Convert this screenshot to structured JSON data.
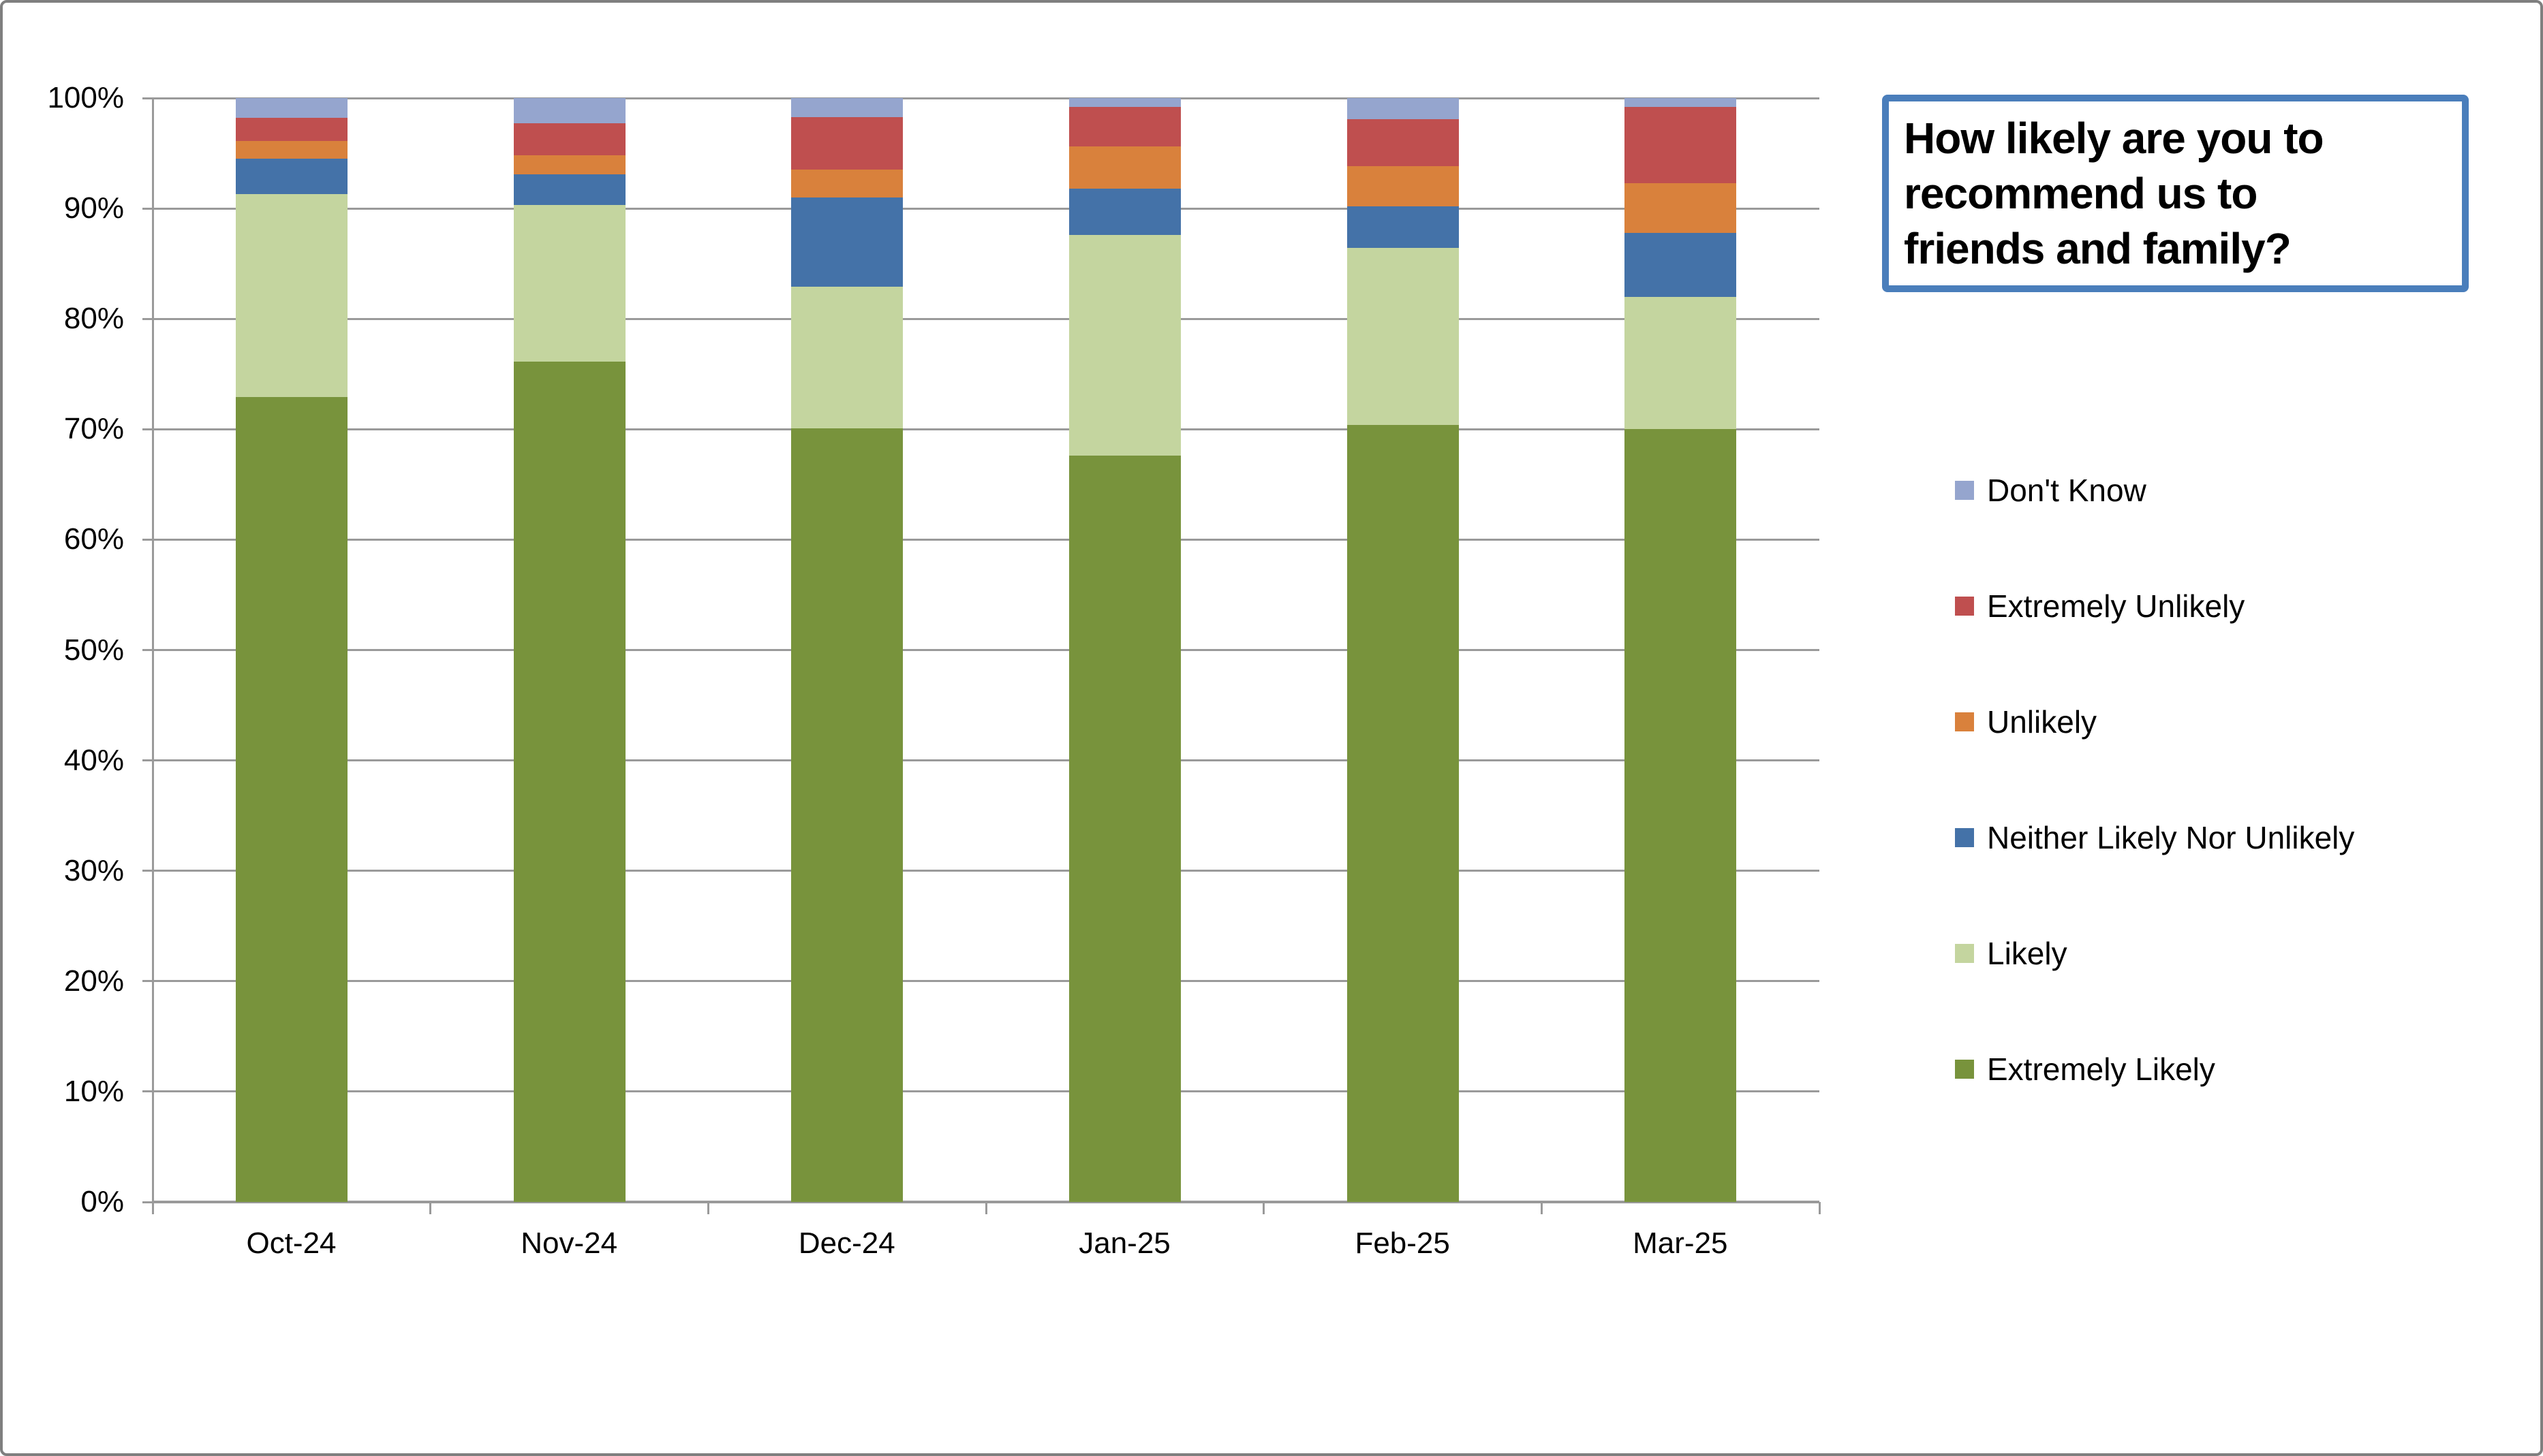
{
  "title": {
    "text": "How likely are you to\nrecommend us to\nfriends and family?",
    "border_color": "#4A7EBB"
  },
  "chart_data": {
    "type": "bar",
    "stacked": true,
    "percent_stacked": true,
    "title": "How likely are you to recommend us to friends and family?",
    "categories": [
      "Oct-24",
      "Nov-24",
      "Dec-24",
      "Jan-25",
      "Feb-25",
      "Mar-25"
    ],
    "series": [
      {
        "name": "Don't Know",
        "color": "#95A5CE",
        "values": [
          1.8,
          2.3,
          1.7,
          0.8,
          1.9,
          0.8
        ]
      },
      {
        "name": "Extremely Unlikely",
        "color": "#BF4F4F",
        "values": [
          2.1,
          2.9,
          4.8,
          3.6,
          4.3,
          6.9
        ]
      },
      {
        "name": "Unlikely",
        "color": "#D9813C",
        "values": [
          1.6,
          1.7,
          2.5,
          3.8,
          3.6,
          4.5
        ]
      },
      {
        "name": "Neither Likely Nor Unlikely",
        "color": "#4472A8",
        "values": [
          3.2,
          2.8,
          8.1,
          4.2,
          3.8,
          5.8
        ]
      },
      {
        "name": "Likely",
        "color": "#C4D59F",
        "values": [
          18.4,
          14.2,
          12.8,
          20.0,
          16.0,
          12.0
        ]
      },
      {
        "name": "Extremely Likely",
        "color": "#78933C",
        "values": [
          72.9,
          76.1,
          70.1,
          67.6,
          70.4,
          70.0
        ]
      }
    ],
    "xlabel": "",
    "ylabel": "",
    "y_axis": {
      "min": 0,
      "max": 100,
      "ticks": [
        "0%",
        "10%",
        "20%",
        "30%",
        "40%",
        "50%",
        "60%",
        "70%",
        "80%",
        "90%",
        "100%"
      ]
    },
    "grid": true,
    "legend_position": "right",
    "grid_color": "#9A9A9A"
  }
}
